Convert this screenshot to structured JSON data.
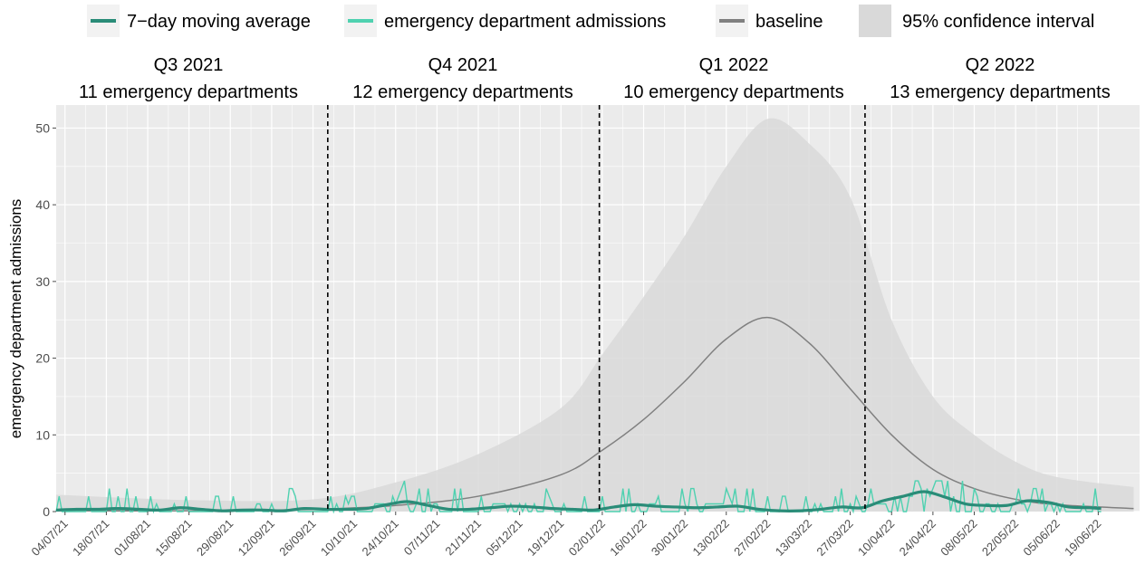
{
  "chart_data": {
    "type": "line",
    "legend": {
      "position": "top",
      "items": [
        {
          "label": "7−day moving average",
          "symbol": "line",
          "color": "#2a8c78"
        },
        {
          "label": "emergency department admissions",
          "symbol": "line",
          "color": "#4fd1b0"
        },
        {
          "label": "baseline",
          "symbol": "line",
          "color": "#808080"
        },
        {
          "label": "95% confidence interval",
          "symbol": "box",
          "color": "#d9d9d9"
        }
      ]
    },
    "ylabel": "emergency department admissions",
    "xlabel": "",
    "ylim": [
      0,
      53
    ],
    "yticks": [
      0,
      10,
      20,
      30,
      40,
      50
    ],
    "x_range": [
      "2021-07-01",
      "2022-07-03"
    ],
    "x_tick_labels": [
      "04/07/21",
      "18/07/21",
      "01/08/21",
      "15/08/21",
      "29/08/21",
      "12/09/21",
      "26/09/21",
      "10/10/21",
      "24/10/21",
      "07/11/21",
      "21/11/21",
      "05/12/21",
      "19/12/21",
      "02/01/22",
      "16/01/22",
      "30/01/22",
      "13/02/22",
      "27/02/22",
      "13/03/22",
      "27/03/22",
      "10/04/22",
      "24/04/22",
      "08/05/22",
      "22/05/22",
      "05/06/22",
      "19/06/22"
    ],
    "x_tick_dates": [
      "2021-07-04",
      "2021-07-18",
      "2021-08-01",
      "2021-08-15",
      "2021-08-29",
      "2021-09-12",
      "2021-09-26",
      "2021-10-10",
      "2021-10-24",
      "2021-11-07",
      "2021-11-21",
      "2021-12-05",
      "2021-12-19",
      "2022-01-02",
      "2022-01-16",
      "2022-01-30",
      "2022-02-13",
      "2022-02-27",
      "2022-03-13",
      "2022-03-27",
      "2022-04-10",
      "2022-04-24",
      "2022-05-08",
      "2022-05-22",
      "2022-06-05",
      "2022-06-19"
    ],
    "grid": true,
    "background": "#ebebeb",
    "quarters": [
      {
        "label": "Q3 2021",
        "sublabel": "11 emergency departments"
      },
      {
        "label": "Q4 2021",
        "sublabel": "12 emergency departments"
      },
      {
        "label": "Q1 2022",
        "sublabel": "10 emergency departments"
      },
      {
        "label": "Q2 2022",
        "sublabel": "13 emergency departments"
      }
    ],
    "quarter_boundaries": [
      "2021-10-01",
      "2022-01-01",
      "2022-04-01"
    ],
    "baseline": {
      "name": "baseline",
      "color": "#808080",
      "x": [
        "2021-07-01",
        "2021-08-15",
        "2021-09-26",
        "2021-10-24",
        "2021-11-21",
        "2021-12-19",
        "2022-01-02",
        "2022-01-16",
        "2022-01-30",
        "2022-02-13",
        "2022-02-27",
        "2022-03-13",
        "2022-03-27",
        "2022-04-10",
        "2022-04-24",
        "2022-05-08",
        "2022-05-22",
        "2022-06-05",
        "2022-07-01"
      ],
      "y": [
        0.1,
        0.1,
        0.3,
        0.8,
        2.0,
        4.8,
        8.0,
        12.0,
        17.0,
        22.5,
        25.3,
        22.0,
        16.0,
        10.0,
        5.5,
        3.0,
        1.6,
        0.9,
        0.4
      ]
    },
    "confidence_interval": {
      "name": "95% confidence interval",
      "color": "#d9d9d9",
      "x": [
        "2021-07-01",
        "2021-08-15",
        "2021-09-26",
        "2021-10-24",
        "2021-11-21",
        "2021-12-19",
        "2022-01-02",
        "2022-01-16",
        "2022-01-30",
        "2022-02-13",
        "2022-02-27",
        "2022-03-13",
        "2022-03-27",
        "2022-04-10",
        "2022-04-24",
        "2022-05-08",
        "2022-05-22",
        "2022-06-05",
        "2022-07-01"
      ],
      "lower": [
        0,
        0,
        0,
        0,
        0,
        0,
        0,
        0,
        0,
        0,
        0,
        0,
        0,
        0,
        0,
        0,
        0,
        0,
        0
      ],
      "upper": [
        2.2,
        1.5,
        1.6,
        3.8,
        7.5,
        13.5,
        20.5,
        28.0,
        36.0,
        45.0,
        51.2,
        48.0,
        41.0,
        25.0,
        15.0,
        10.0,
        6.5,
        4.5,
        3.2
      ]
    },
    "moving_average": {
      "name": "7−day moving average",
      "color": "#2a8c78",
      "x": [
        "2021-07-01",
        "2021-07-08",
        "2021-07-15",
        "2021-07-22",
        "2021-07-29",
        "2021-08-05",
        "2021-08-12",
        "2021-08-19",
        "2021-08-26",
        "2021-09-02",
        "2021-09-09",
        "2021-09-16",
        "2021-09-23",
        "2021-09-30",
        "2021-10-07",
        "2021-10-14",
        "2021-10-21",
        "2021-10-28",
        "2021-11-04",
        "2021-11-11",
        "2021-11-18",
        "2021-11-25",
        "2021-12-02",
        "2021-12-09",
        "2021-12-16",
        "2021-12-23",
        "2021-12-30",
        "2022-01-06",
        "2022-01-13",
        "2022-01-20",
        "2022-01-27",
        "2022-02-03",
        "2022-02-10",
        "2022-02-17",
        "2022-02-24",
        "2022-03-03",
        "2022-03-10",
        "2022-03-17",
        "2022-03-24",
        "2022-03-31",
        "2022-04-07",
        "2022-04-14",
        "2022-04-21",
        "2022-04-28",
        "2022-05-05",
        "2022-05-12",
        "2022-05-19",
        "2022-05-26",
        "2022-06-02",
        "2022-06-09",
        "2022-06-16",
        "2022-06-20"
      ],
      "y": [
        0.2,
        0.3,
        0.3,
        0.4,
        0.3,
        0.2,
        0.5,
        0.3,
        0.1,
        0.2,
        0.2,
        0.1,
        0.4,
        0.3,
        0.3,
        0.4,
        0.9,
        1.3,
        0.8,
        0.3,
        0.3,
        0.5,
        0.7,
        0.6,
        0.4,
        0.3,
        0.2,
        0.6,
        0.9,
        0.7,
        0.6,
        0.5,
        0.6,
        0.7,
        0.3,
        0.1,
        0.1,
        0.3,
        0.6,
        0.5,
        1.4,
        2.0,
        2.6,
        1.9,
        1.0,
        0.8,
        0.8,
        1.4,
        1.2,
        0.6,
        0.5,
        0.4
      ]
    },
    "daily": {
      "name": "emergency department admissions",
      "color": "#4fd1b0",
      "x_start": "2021-07-01",
      "x_end": "2022-06-20",
      "note_unused": ""
    }
  }
}
